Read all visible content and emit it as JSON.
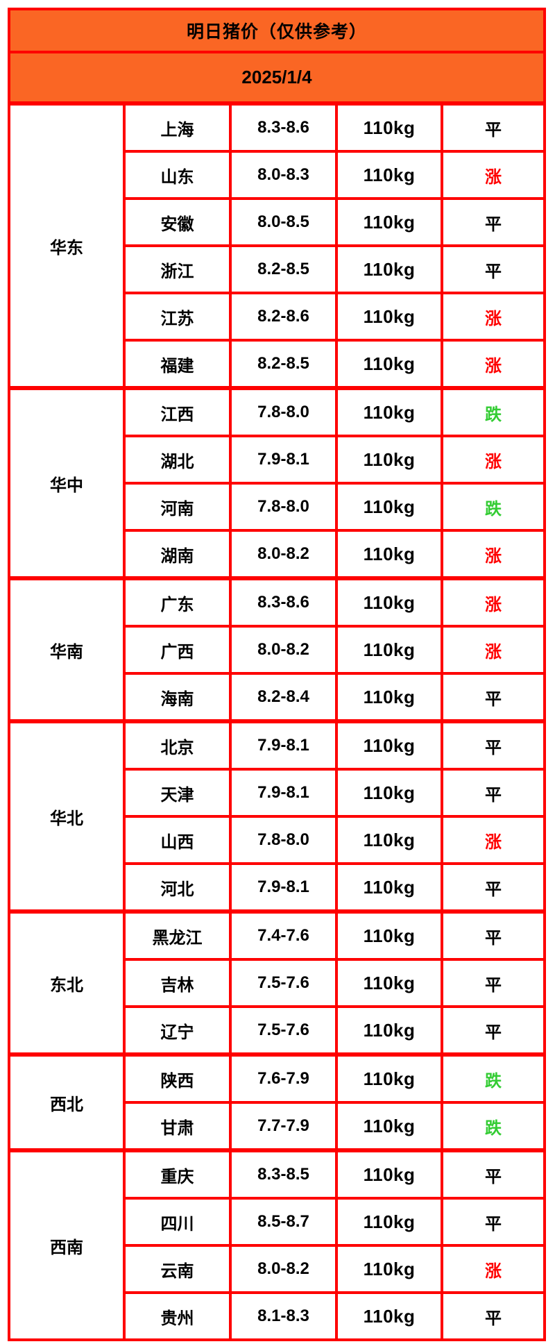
{
  "colors": {
    "header_background": "#fa6624",
    "grid_border": "#fe0000",
    "corner_marker": "#1e7a1e"
  },
  "chart_data": {
    "type": "table",
    "title": "明日猪价（仅供参考）",
    "date": "2025/1/4",
    "trend_colors": {
      "平": "#000000",
      "涨": "#ff0000",
      "跌": "#33cc33"
    },
    "regions": [
      {
        "name": "华东",
        "rows": [
          {
            "province": "上海",
            "price_range": "8.3-8.6",
            "weight": "110kg",
            "trend": "平"
          },
          {
            "province": "山东",
            "price_range": "8.0-8.3",
            "weight": "110kg",
            "trend": "涨"
          },
          {
            "province": "安徽",
            "price_range": "8.0-8.5",
            "weight": "110kg",
            "trend": "平"
          },
          {
            "province": "浙江",
            "price_range": "8.2-8.5",
            "weight": "110kg",
            "trend": "平"
          },
          {
            "province": "江苏",
            "price_range": "8.2-8.6",
            "weight": "110kg",
            "trend": "涨"
          },
          {
            "province": "福建",
            "price_range": "8.2-8.5",
            "weight": "110kg",
            "trend": "涨"
          }
        ]
      },
      {
        "name": "华中",
        "rows": [
          {
            "province": "江西",
            "price_range": "7.8-8.0",
            "weight": "110kg",
            "trend": "跌"
          },
          {
            "province": "湖北",
            "price_range": "7.9-8.1",
            "weight": "110kg",
            "trend": "涨"
          },
          {
            "province": "河南",
            "price_range": "7.8-8.0",
            "weight": "110kg",
            "trend": "跌"
          },
          {
            "province": "湖南",
            "price_range": "8.0-8.2",
            "weight": "110kg",
            "trend": "涨"
          }
        ]
      },
      {
        "name": "华南",
        "rows": [
          {
            "province": "广东",
            "price_range": "8.3-8.6",
            "weight": "110kg",
            "trend": "涨"
          },
          {
            "province": "广西",
            "price_range": "8.0-8.2",
            "weight": "110kg",
            "trend": "涨"
          },
          {
            "province": "海南",
            "price_range": "8.2-8.4",
            "weight": "110kg",
            "trend": "平"
          }
        ]
      },
      {
        "name": "华北",
        "rows": [
          {
            "province": "北京",
            "price_range": "7.9-8.1",
            "weight": "110kg",
            "trend": "平"
          },
          {
            "province": "天津",
            "price_range": "7.9-8.1",
            "weight": "110kg",
            "trend": "平"
          },
          {
            "province": "山西",
            "price_range": "7.8-8.0",
            "weight": "110kg",
            "trend": "涨"
          },
          {
            "province": "河北",
            "price_range": "7.9-8.1",
            "weight": "110kg",
            "trend": "平"
          }
        ]
      },
      {
        "name": "东北",
        "rows": [
          {
            "province": "黑龙江",
            "price_range": "7.4-7.6",
            "weight": "110kg",
            "trend": "平"
          },
          {
            "province": "吉林",
            "price_range": "7.5-7.6",
            "weight": "110kg",
            "trend": "平"
          },
          {
            "province": "辽宁",
            "price_range": "7.5-7.6",
            "weight": "110kg",
            "trend": "平"
          }
        ]
      },
      {
        "name": "西北",
        "rows": [
          {
            "province": "陕西",
            "price_range": "7.6-7.9",
            "weight": "110kg",
            "trend": "跌"
          },
          {
            "province": "甘肃",
            "price_range": "7.7-7.9",
            "weight": "110kg",
            "trend": "跌"
          }
        ]
      },
      {
        "name": "西南",
        "corner_marker": true,
        "rows": [
          {
            "province": "重庆",
            "price_range": "8.3-8.5",
            "weight": "110kg",
            "trend": "平"
          },
          {
            "province": "四川",
            "price_range": "8.5-8.7",
            "weight": "110kg",
            "trend": "平"
          },
          {
            "province": "云南",
            "price_range": "8.0-8.2",
            "weight": "110kg",
            "trend": "涨"
          },
          {
            "province": "贵州",
            "price_range": "8.1-8.3",
            "weight": "110kg",
            "trend": "平"
          }
        ]
      }
    ]
  }
}
